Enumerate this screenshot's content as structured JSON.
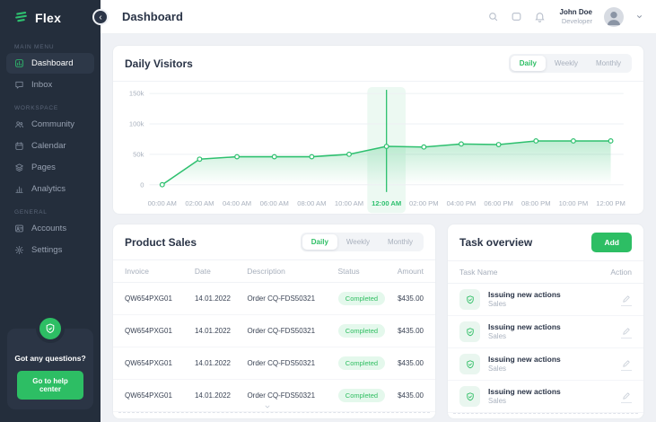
{
  "brand": {
    "name": "Flex"
  },
  "header": {
    "title": "Dashboard",
    "icons": [
      "search",
      "messages",
      "notifications"
    ],
    "user": {
      "name": "John Doe",
      "role": "Developer"
    }
  },
  "sidebar": {
    "sections": [
      {
        "label": "MAIN MENU",
        "items": [
          {
            "label": "Dashboard",
            "icon": "dashboard",
            "active": true
          },
          {
            "label": "Inbox",
            "icon": "inbox",
            "active": false
          }
        ]
      },
      {
        "label": "Workspace",
        "items": [
          {
            "label": "Community",
            "icon": "community",
            "active": false
          },
          {
            "label": "Calendar",
            "icon": "calendar",
            "active": false
          },
          {
            "label": "Pages",
            "icon": "pages",
            "active": false
          },
          {
            "label": "Analytics",
            "icon": "analytics",
            "active": false
          }
        ]
      },
      {
        "label": "General",
        "items": [
          {
            "label": "Accounts",
            "icon": "accounts",
            "active": false
          },
          {
            "label": "Settings",
            "icon": "settings",
            "active": false
          }
        ]
      }
    ],
    "help": {
      "question": "Got any questions?",
      "button_label": "Go to help center"
    }
  },
  "visitors": {
    "title": "Daily Visitors",
    "tabs": [
      "Daily",
      "Weekly",
      "Monthly"
    ],
    "active_tab": "Daily"
  },
  "chart_data": {
    "type": "area",
    "title": "Daily Visitors",
    "x": [
      "00:00 AM",
      "02:00 AM",
      "04:00 AM",
      "06:00 AM",
      "08:00 AM",
      "10:00 AM",
      "12:00 AM",
      "02:00 PM",
      "04:00 PM",
      "06:00 PM",
      "08:00 PM",
      "10:00 PM",
      "12:00 PM"
    ],
    "values": [
      0,
      42000,
      46000,
      46000,
      46000,
      50000,
      63000,
      62000,
      67000,
      66000,
      72000,
      72000,
      72000
    ],
    "y_ticks": [
      "150k",
      "100k",
      "50k",
      "0"
    ],
    "ylim": [
      0,
      150000
    ],
    "highlight_index": 6,
    "grid": true,
    "line_color": "#2ec06f"
  },
  "product_sales": {
    "title": "Product Sales",
    "tabs": [
      "Daily",
      "Weekly",
      "Monthly"
    ],
    "active_tab": "Daily",
    "columns": [
      "Invoice",
      "Date",
      "Description",
      "Status",
      "Amount"
    ],
    "rows": [
      {
        "invoice": "QW654PXG01",
        "date": "14.01.2022",
        "description": "Order CQ-FDS50321",
        "status": "Completed",
        "amount": "$435.00"
      },
      {
        "invoice": "QW654PXG01",
        "date": "14.01.2022",
        "description": "Order CQ-FDS50321",
        "status": "Completed",
        "amount": "$435.00"
      },
      {
        "invoice": "QW654PXG01",
        "date": "14.01.2022",
        "description": "Order CQ-FDS50321",
        "status": "Completed",
        "amount": "$435.00"
      },
      {
        "invoice": "QW654PXG01",
        "date": "14.01.2022",
        "description": "Order CQ-FDS50321",
        "status": "Completed",
        "amount": "$435.00"
      }
    ]
  },
  "tasks": {
    "title": "Task overview",
    "add_label": "Add",
    "columns": [
      "Task Name",
      "Action"
    ],
    "rows": [
      {
        "title": "Issuing new actions",
        "subtitle": "Sales"
      },
      {
        "title": "Issuing new actions",
        "subtitle": "Sales"
      },
      {
        "title": "Issuing new actions",
        "subtitle": "Sales"
      },
      {
        "title": "Issuing new actions",
        "subtitle": "Sales"
      }
    ]
  },
  "colors": {
    "accent": "#2dbe64",
    "badge_bg": "#e4f8ec",
    "sidebar_bg": "#242e3c"
  }
}
